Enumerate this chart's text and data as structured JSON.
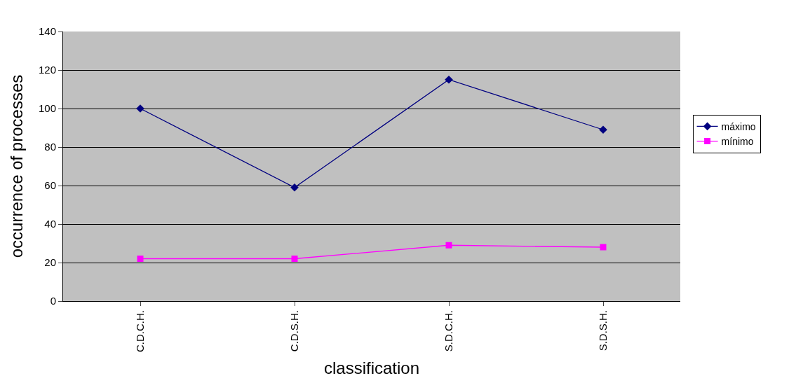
{
  "chart_data": {
    "type": "line",
    "xlabel": "classification",
    "ylabel": "occurrence of processes",
    "categories": [
      "C.D.C.H.",
      "C.D.S.H.",
      "S.D.C.H.",
      "S.D.S.H."
    ],
    "series": [
      {
        "name": "máximo",
        "color": "#000080",
        "values": [
          100,
          59,
          115,
          89
        ],
        "marker": "diamond"
      },
      {
        "name": "mínimo",
        "color": "#ff00ff",
        "values": [
          22,
          22,
          29,
          28
        ],
        "marker": "square"
      }
    ],
    "ylim": [
      0,
      140
    ],
    "yticks": [
      0,
      20,
      40,
      60,
      80,
      100,
      120,
      140
    ],
    "grid": "y",
    "legend": "right",
    "line_style": "solid"
  }
}
